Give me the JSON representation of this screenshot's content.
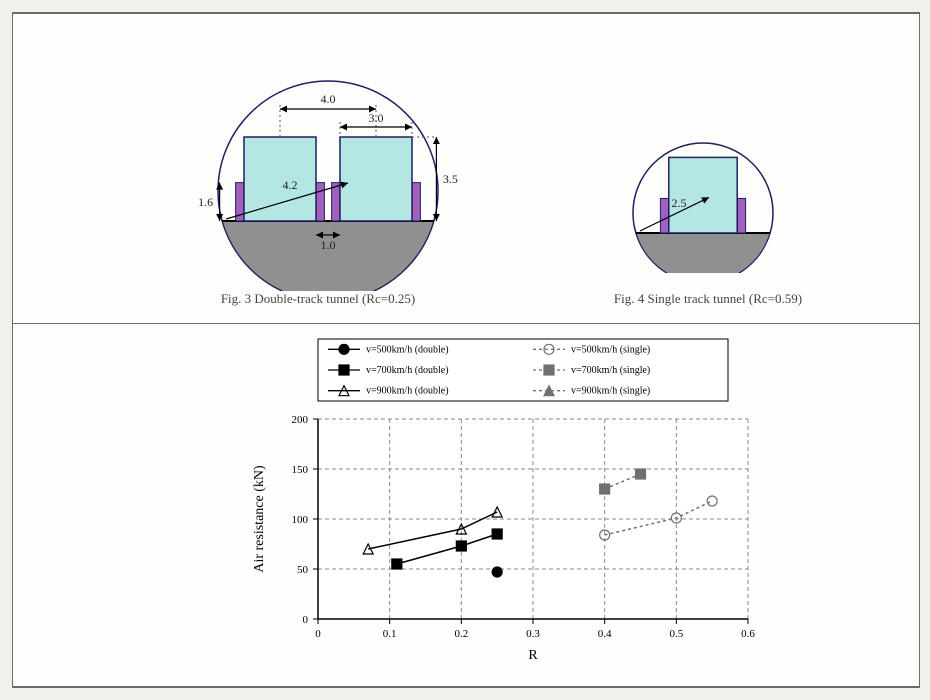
{
  "figures": {
    "double_track": {
      "caption": "Fig. 3 Double-track tunnel (Rc=0.25)",
      "type": "tunnel-cross-section",
      "tunnel_radius_pts": 110,
      "chord_offset_pts": 30,
      "ground_color": "#909090",
      "tunnel_stroke": "#1f1f60",
      "train_fill": "#b4e6e4",
      "train_stroke": "#1f1f60",
      "guide_fill": "#a060c0",
      "guide_stroke": "#1f1f60",
      "dims": {
        "track_spacing": "4.0",
        "train_width": "3.0",
        "train_height": "3.5",
        "guide_height": "1.6",
        "gap": "1.0",
        "radius": "4.2"
      }
    },
    "single_track": {
      "caption": "Fig. 4 Single track tunnel (Rc=0.59)",
      "type": "tunnel-cross-section",
      "tunnel_radius_pts": 70,
      "dims": {
        "radius": "2.5"
      }
    }
  },
  "chart": {
    "type": "scatter-line",
    "xlabel": "R",
    "ylabel": "Air resistance (kN)",
    "xlim": [
      0,
      0.6
    ],
    "ylim": [
      0,
      200
    ],
    "xticks": [
      0,
      0.1,
      0.2,
      0.3,
      0.4,
      0.5,
      0.6
    ],
    "yticks": [
      0,
      50,
      100,
      150,
      200
    ],
    "plot_bg": "#ffffff",
    "grid_color": "#888888",
    "grid_dash": "4 3",
    "axis_color": "#000000",
    "label_fontsize": 14,
    "tick_fontsize": 11,
    "legend_fontsize": 10,
    "series": [
      {
        "name": "v=500km/h (double)",
        "marker": "circle",
        "fill": "#000000",
        "stroke": "#000000",
        "line_dash": "none",
        "points": [
          [
            0.25,
            47
          ]
        ]
      },
      {
        "name": "v=700km/h (double)",
        "marker": "square",
        "fill": "#000000",
        "stroke": "#000000",
        "line_dash": "none",
        "points": [
          [
            0.11,
            55
          ],
          [
            0.2,
            73
          ],
          [
            0.25,
            85
          ]
        ]
      },
      {
        "name": "v=900km/h (double)",
        "marker": "triangle",
        "fill": "none",
        "stroke": "#000000",
        "line_dash": "none",
        "points": [
          [
            0.07,
            70
          ],
          [
            0.2,
            90
          ],
          [
            0.25,
            107
          ]
        ]
      },
      {
        "name": "v=500km/h (single)",
        "marker": "circle",
        "fill": "none",
        "stroke": "#707070",
        "line_dash": "3 3",
        "points": [
          [
            0.4,
            84
          ],
          [
            0.5,
            101
          ],
          [
            0.55,
            118
          ]
        ]
      },
      {
        "name": "v=700km/h (single)",
        "marker": "square",
        "fill": "#707070",
        "stroke": "#707070",
        "line_dash": "3 3",
        "points": [
          [
            0.4,
            130
          ],
          [
            0.45,
            145
          ]
        ]
      },
      {
        "name": "v=900km/h (single)",
        "marker": "triangle",
        "fill": "#707070",
        "stroke": "#707070",
        "line_dash": "3 3",
        "points": []
      }
    ],
    "legend_layout": [
      [
        "v=500km/h (double)",
        "v=500km/h (single)"
      ],
      [
        "v=700km/h (double)",
        "v=700km/h (single)"
      ],
      [
        "v=900km/h (double)",
        "v=900km/h (single)"
      ]
    ]
  }
}
